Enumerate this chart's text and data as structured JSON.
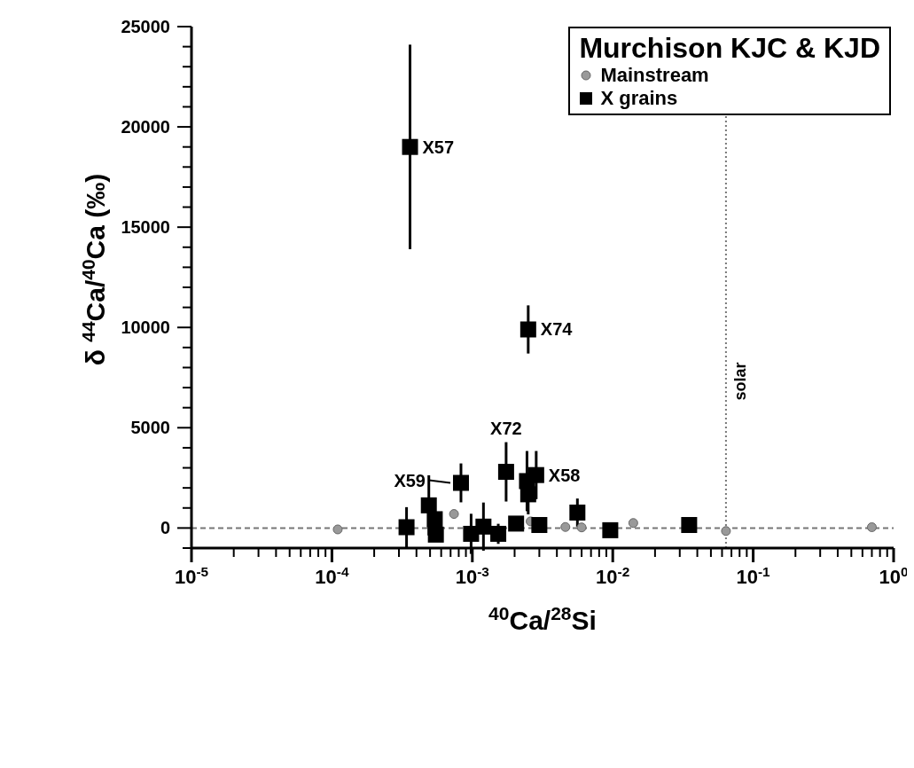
{
  "chart_data": {
    "type": "scatter",
    "xlabel": "$^{40}$Ca/$^{28}$Si",
    "ylabel": "δ $^{44}$Ca/$^{40}$Ca (‰)",
    "legend_title": "Murchison KJC & KJD",
    "legend": "top right",
    "log": "x",
    "grid": false,
    "xlim": [
      1e-05,
      1
    ],
    "xticks": [
      {
        "value": 1e-05,
        "label": "10$^{-5}$"
      },
      {
        "value": 2e-05,
        "label": null
      },
      {
        "value": 3e-05,
        "label": null
      },
      {
        "value": 4e-05,
        "label": null
      },
      {
        "value": 5e-05,
        "label": null
      },
      {
        "value": 6e-05,
        "label": null
      },
      {
        "value": 7e-05,
        "label": null
      },
      {
        "value": 8e-05,
        "label": null
      },
      {
        "value": 9e-05,
        "label": null
      },
      {
        "value": 0.0001,
        "label": "10$^{-4}$"
      },
      {
        "value": 0.0002,
        "label": null
      },
      {
        "value": 0.0003,
        "label": null
      },
      {
        "value": 0.0004,
        "label": null
      },
      {
        "value": 0.0005,
        "label": null
      },
      {
        "value": 0.0006,
        "label": null
      },
      {
        "value": 0.0007,
        "label": null
      },
      {
        "value": 0.0008,
        "label": null
      },
      {
        "value": 0.0009,
        "label": null
      },
      {
        "value": 0.001,
        "label": "10$^{-3}$"
      },
      {
        "value": 0.002,
        "label": null
      },
      {
        "value": 0.003,
        "label": null
      },
      {
        "value": 0.004,
        "label": null
      },
      {
        "value": 0.005,
        "label": null
      },
      {
        "value": 0.006,
        "label": null
      },
      {
        "value": 0.007,
        "label": null
      },
      {
        "value": 0.008,
        "label": null
      },
      {
        "value": 0.009,
        "label": null
      },
      {
        "value": 0.01,
        "label": "10$^{-2}$"
      },
      {
        "value": 0.02,
        "label": null
      },
      {
        "value": 0.03,
        "label": null
      },
      {
        "value": 0.04,
        "label": null
      },
      {
        "value": 0.05,
        "label": null
      },
      {
        "value": 0.06,
        "label": null
      },
      {
        "value": 0.07,
        "label": null
      },
      {
        "value": 0.08,
        "label": null
      },
      {
        "value": 0.09,
        "label": null
      },
      {
        "value": 0.1,
        "label": "10$^{-1}$"
      },
      {
        "value": 0.2,
        "label": null
      },
      {
        "value": 0.3,
        "label": null
      },
      {
        "value": 0.4,
        "label": null
      },
      {
        "value": 0.5,
        "label": null
      },
      {
        "value": 0.6,
        "label": null
      },
      {
        "value": 0.7,
        "label": null
      },
      {
        "value": 0.8,
        "label": null
      },
      {
        "value": 0.9,
        "label": null
      },
      {
        "value": 1,
        "label": "10$^{0}$"
      }
    ],
    "ylim": [
      -1000,
      25000
    ],
    "yticks": [
      {
        "value": -1000,
        "label": null
      },
      0,
      {
        "value": 1000,
        "label": null
      },
      {
        "value": 2000,
        "label": null
      },
      {
        "value": 3000,
        "label": null
      },
      {
        "value": 4000,
        "label": null
      },
      5000,
      {
        "value": 6000,
        "label": null
      },
      {
        "value": 7000,
        "label": null
      },
      {
        "value": 8000,
        "label": null
      },
      {
        "value": 9000,
        "label": null
      },
      10000,
      {
        "value": 11000,
        "label": null
      },
      {
        "value": 12000,
        "label": null
      },
      {
        "value": 13000,
        "label": null
      },
      {
        "value": 14000,
        "label": null
      },
      15000,
      {
        "value": 16000,
        "label": null
      },
      {
        "value": 17000,
        "label": null
      },
      {
        "value": 18000,
        "label": null
      },
      {
        "value": 19000,
        "label": null
      },
      20000,
      {
        "value": 21000,
        "label": null
      },
      {
        "value": 22000,
        "label": null
      },
      {
        "value": 23000,
        "label": null
      },
      {
        "value": 24000,
        "label": null
      },
      25000
    ],
    "series": [
      {
        "name": "Mainstream",
        "color": "#999999",
        "marker": "circle",
        "x": [
          0.00011,
          0.00074,
          0.0026,
          0.0034,
          0.0046,
          0.006,
          0.014,
          0.064,
          0.7
        ],
        "values": [
          -70,
          700,
          330,
          null,
          50,
          30,
          250,
          -150,
          40
        ]
      },
      {
        "name": "X grains",
        "color": "#000000",
        "marker": "square",
        "x": [
          0.00036,
          0.0025,
          0.00083,
          0.00174,
          0.00285,
          0.00245,
          0.0025,
          0.00049,
          0.00054,
          0.00055,
          0.00034,
          0.00098,
          0.0012,
          0.00153,
          0.00205,
          0.003,
          0.0056,
          0.0096,
          0.035
        ],
        "values": [
          19000,
          9900,
          2250,
          2800,
          2640,
          2340,
          1680,
          1130,
          440,
          -330,
          40,
          -290,
          70,
          -290,
          220,
          150,
          770,
          -110,
          150
        ],
        "errors": [
          5100,
          1200,
          970,
          1480,
          1200,
          1500,
          1000,
          1500,
          null,
          null,
          1000,
          1000,
          1200,
          500,
          null,
          null,
          700,
          null,
          null
        ]
      }
    ],
    "ref_lines": [
      {
        "axis": "x",
        "value": 0.064,
        "label": "solar",
        "line_style": "dotted",
        "color": "#777777"
      },
      {
        "axis": "y",
        "value": 0,
        "label": null,
        "line_style": "dashed",
        "color": "#777777"
      }
    ],
    "annotations": [
      {
        "text": "X57",
        "x": 0.00036,
        "y": 19000
      },
      {
        "text": "X74",
        "x": 0.0025,
        "y": 9900
      },
      {
        "text": "X72",
        "x": 0.00174,
        "y": 2800
      },
      {
        "text": "X59",
        "x": 0.00083,
        "y": 2250
      },
      {
        "text": "X58",
        "x": 0.00285,
        "y": 2640
      }
    ]
  }
}
